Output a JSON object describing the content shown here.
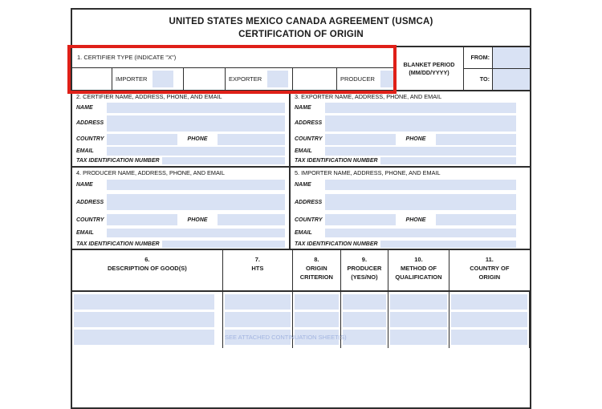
{
  "form": {
    "title": {
      "line1": "UNITED STATES MEXICO CANADA AGREEMENT (USMCA)",
      "line2": "CERTIFICATION OF ORIGIN"
    },
    "certifier_type": {
      "label": "1. CERTIFIER TYPE (INDICATE  \"X\")",
      "options": [
        {
          "label": "IMPORTER"
        },
        {
          "label": "EXPORTER"
        },
        {
          "label": "PRODUCER"
        }
      ]
    },
    "blanket_period": {
      "title_line1": "BLANKET PERIOD",
      "title_line2": "(MM/DD/YYYY)",
      "from_label": "FROM:",
      "to_label": "TO:"
    },
    "party_sections": [
      {
        "header": "2. CERTIFIER NAME, ADDRESS, PHONE, AND EMAIL"
      },
      {
        "header": "3. EXPORTER NAME, ADDRESS, PHONE, AND EMAIL"
      },
      {
        "header": "4. PRODUCER NAME, ADDRESS, PHONE, AND EMAIL"
      },
      {
        "header": "5. IMPORTER NAME, ADDRESS, PHONE, AND EMAIL"
      }
    ],
    "party_field_labels": {
      "name": "NAME",
      "address": "ADDRESS",
      "country": "COUNTRY",
      "phone": "PHONE",
      "email": "EMAIL",
      "tax_id": "TAX IDENTIFICATION NUMBER"
    },
    "goods_table": {
      "columns": [
        {
          "number": "6.",
          "label": "DESCRIPTION OF GOOD(S)"
        },
        {
          "number": "7.",
          "label": "HTS"
        },
        {
          "number": "8.",
          "label": "ORIGIN CRITERION"
        },
        {
          "number": "9.",
          "label": "PRODUCER (YES/NO)"
        },
        {
          "number": "10.",
          "label": "METHOD OF QUALIFICATION"
        },
        {
          "number": "11.",
          "label": "COUNTRY OF ORIGIN"
        }
      ],
      "visible_row_count": 3,
      "continuation_note": "SEE ATTACHED CONTINUATION SHEET(S)"
    },
    "colors": {
      "field_fill": "#d9e2f4",
      "highlight_border": "#df2018",
      "line": "#2e2e2e",
      "continuation_text": "#a3b5e0"
    }
  }
}
